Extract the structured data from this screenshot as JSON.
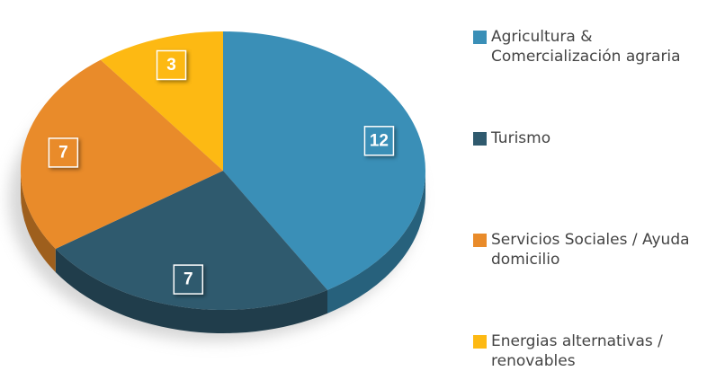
{
  "chart_data": {
    "type": "pie",
    "categories": [
      "Agricultura & Comercialización agraria",
      "Turismo",
      "Servicios Sociales / Ayuda domicilio",
      "Energias alternativas / renovables"
    ],
    "values": [
      12,
      7,
      7,
      3
    ],
    "colors": [
      "#3a8fb7",
      "#2f5a6e",
      "#e98b2a",
      "#fdb913"
    ],
    "legend": "right"
  }
}
